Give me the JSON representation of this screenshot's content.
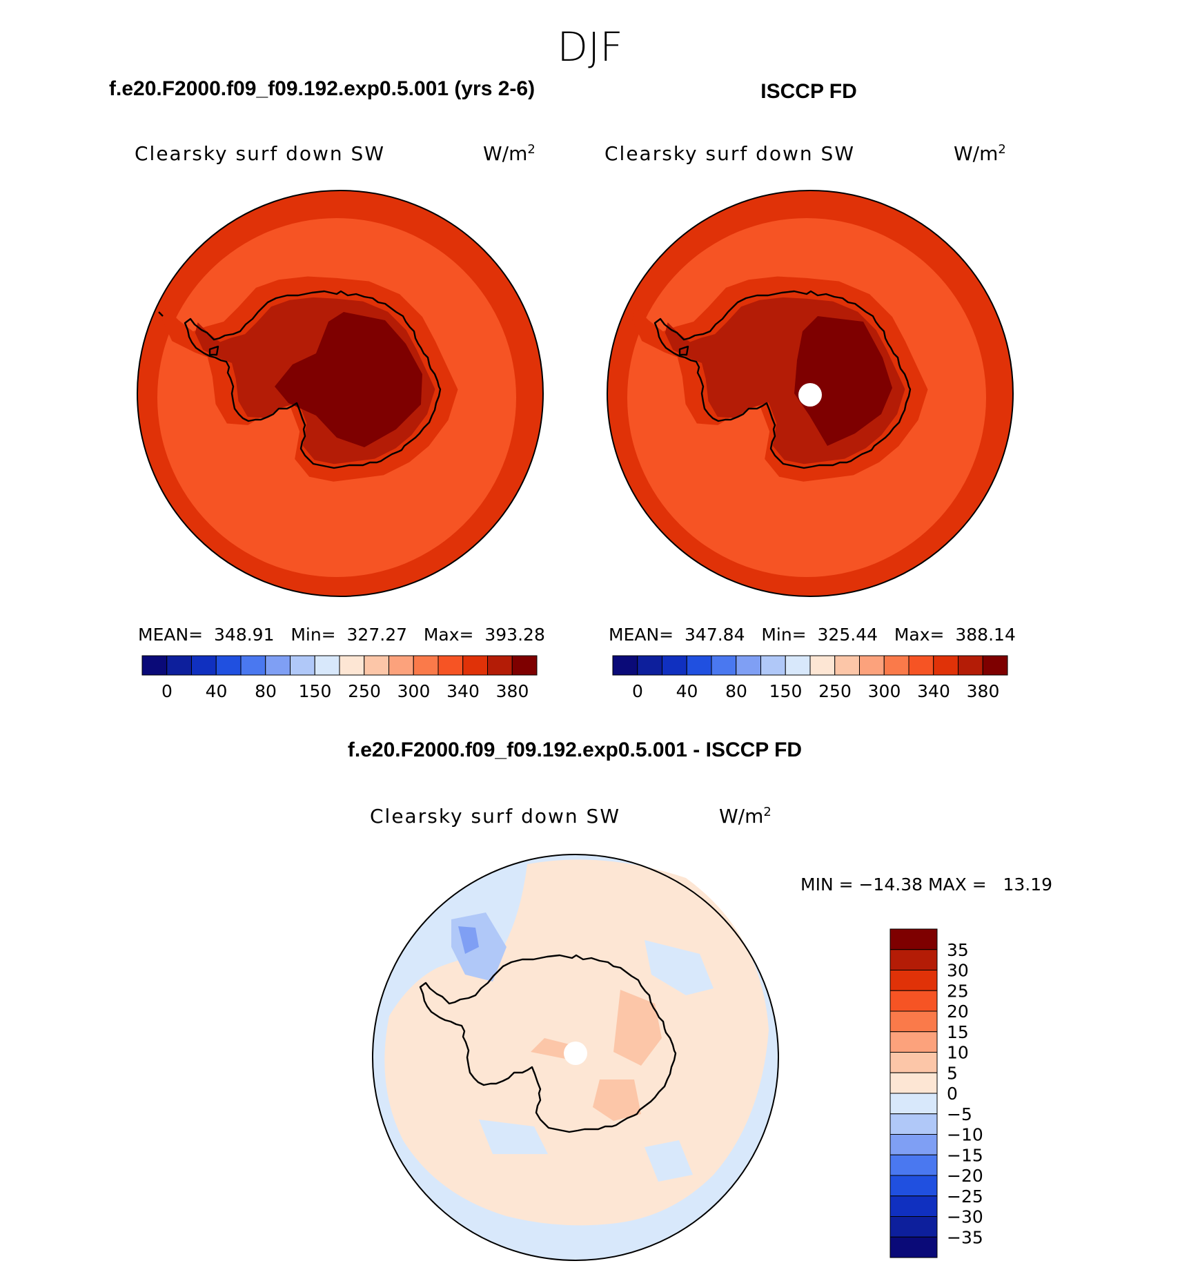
{
  "figure_title": "DJF",
  "panels": [
    {
      "title": "f.e20.F2000.f09_f09.192.exp0.5.001 (yrs 2-6)",
      "field": "Clearsky surf down SW",
      "units": "W/m",
      "units_sup": "2",
      "stats": "MEAN=  348.91   Min=  327.27   Max=  393.28",
      "has_pole_hole": false
    },
    {
      "title": "ISCCP FD",
      "field": "Clearsky surf down SW",
      "units": "W/m",
      "units_sup": "2",
      "stats": "MEAN=  347.84   Min=  325.44   Max=  388.14",
      "has_pole_hole": true
    }
  ],
  "abs_colorbar": {
    "colors": [
      "#0a0a78",
      "#0d1f9c",
      "#1030c0",
      "#2050e0",
      "#4a78f0",
      "#7f9ff4",
      "#b0c8f8",
      "#d8e8fb",
      "#fde6d4",
      "#fcc6a8",
      "#fca27c",
      "#fa7a4a",
      "#f65424",
      "#e03208",
      "#b41c06",
      "#7e0000"
    ],
    "labels": [
      "0",
      "40",
      "80",
      "150",
      "250",
      "300",
      "340",
      "380"
    ]
  },
  "diff_panel": {
    "title": "f.e20.F2000.f09_f09.192.exp0.5.001 - ISCCP FD",
    "field": "Clearsky surf down SW",
    "units": "W/m",
    "units_sup": "2",
    "stats": "MIN = −14.38 MAX =   13.19"
  },
  "diff_colorbar": {
    "colors": [
      "#7e0000",
      "#b41c06",
      "#e03208",
      "#f65424",
      "#fa7a4a",
      "#fca27c",
      "#fcc6a8",
      "#fde6d4",
      "#d8e8fb",
      "#b0c8f8",
      "#7f9ff4",
      "#4a78f0",
      "#2050e0",
      "#1030c0",
      "#0d1f9c",
      "#0a0a78"
    ],
    "labels": [
      "35",
      "30",
      "25",
      "20",
      "15",
      "10",
      "5",
      "0",
      "−5",
      "−10",
      "−15",
      "−20",
      "−25",
      "−30",
      "−35"
    ]
  },
  "colors": {
    "abs_outer": "#e03208",
    "abs_ocean": "#f65424",
    "abs_coast_band": "#e03208",
    "abs_interior": "#b41c06",
    "abs_plateau": "#7e0000",
    "diff_ocean": "#d8e8fb",
    "diff_pos": "#fde6d4",
    "diff_pos2": "#fcc6a8",
    "diff_neg": "#b0c8f8",
    "diff_neg2": "#7f9ff4"
  }
}
